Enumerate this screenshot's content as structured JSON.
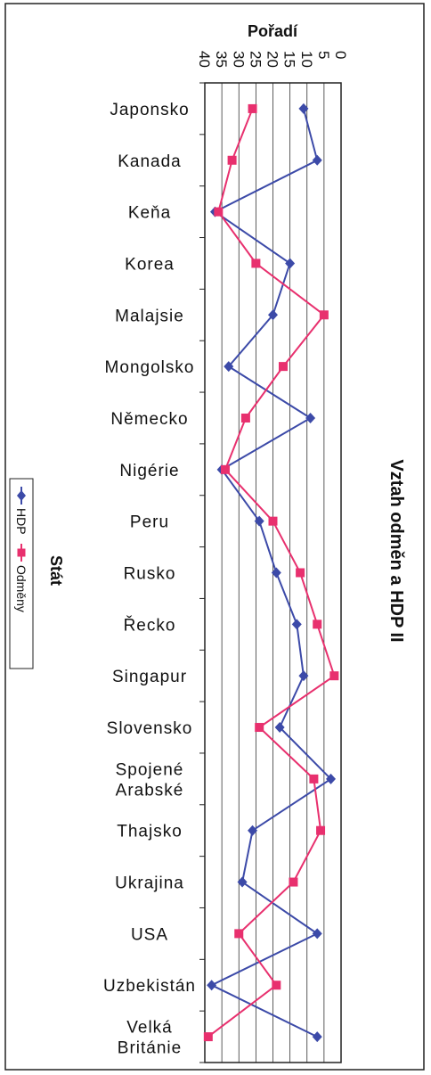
{
  "chart_data": {
    "type": "line",
    "title": "Vztah odměn a HDP II",
    "xlabel": "Stát",
    "ylabel": "Pořadí",
    "ylim": [
      0,
      40
    ],
    "y_inverted": true,
    "orientation": "rotated-90-clockwise",
    "y_ticks": [
      "0",
      "5",
      "10",
      "15",
      "20",
      "25",
      "30",
      "35",
      "40"
    ],
    "grid": true,
    "legend_position": "left",
    "categories": [
      [
        "Japonsko"
      ],
      [
        "Kanada"
      ],
      [
        "Keňa"
      ],
      [
        "Korea"
      ],
      [
        "Malajsie"
      ],
      [
        "Mongolsko"
      ],
      [
        "Německo"
      ],
      [
        "Nigérie"
      ],
      [
        "Peru"
      ],
      [
        "Rusko"
      ],
      [
        "Řecko"
      ],
      [
        "Singapur"
      ],
      [
        "Slovensko"
      ],
      [
        "Spojené",
        "Arabské"
      ],
      [
        "Thajsko"
      ],
      [
        "Ukrajina"
      ],
      [
        "USA"
      ],
      [
        "Uzbekistán"
      ],
      [
        "Velká",
        "Británie"
      ]
    ],
    "series": [
      {
        "name": "HDP",
        "color": "#3c4aa8",
        "marker": "diamond",
        "values": [
          11,
          7,
          37,
          15,
          20,
          33,
          9,
          35,
          24,
          19,
          13,
          11,
          18,
          3,
          26,
          29,
          7,
          38,
          7
        ]
      },
      {
        "name": "Odměny",
        "color": "#e8306e",
        "marker": "square",
        "values": [
          26,
          32,
          36,
          25,
          5,
          17,
          28,
          34,
          20,
          12,
          7,
          2,
          24,
          8,
          6,
          14,
          30,
          19,
          39
        ]
      }
    ]
  }
}
